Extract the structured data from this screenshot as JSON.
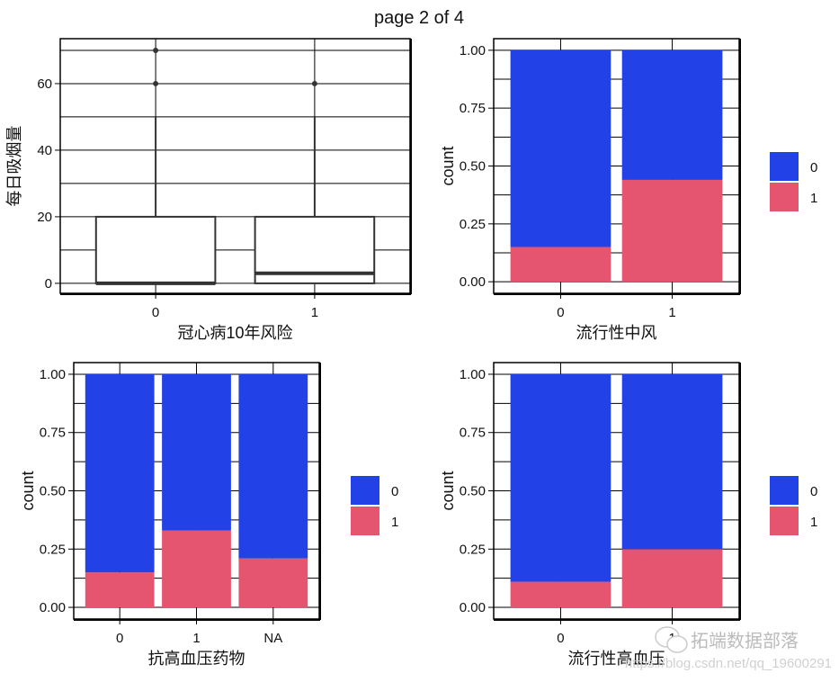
{
  "page_title": "page 2 of 4",
  "colors": {
    "0": "#2241e6",
    "1": "#e5556f",
    "box": "#333333"
  },
  "watermark": {
    "text": "拓端数据部落",
    "url": "https://blog.csdn.net/qq_19600291",
    "icon": "wechat-icon"
  },
  "chart_data": [
    {
      "type": "boxplot",
      "xlabel": "冠心病10年风险",
      "ylabel": "每日吸烟量",
      "categories": [
        "0",
        "1"
      ],
      "yticks": [
        0,
        20,
        40,
        60
      ],
      "ylim": [
        -3,
        73.5
      ],
      "grid": true,
      "boxes": [
        {
          "category": "0",
          "lower_whisker": 0,
          "q1": 0,
          "median": 0,
          "q3": 20,
          "upper_whisker": 50,
          "outliers": [
            60,
            70
          ]
        },
        {
          "category": "1",
          "lower_whisker": 0,
          "q1": 0,
          "median": 3,
          "q3": 20,
          "upper_whisker": 50,
          "outliers": [
            60
          ]
        }
      ]
    },
    {
      "type": "bar",
      "stacked": "fill",
      "xlabel": "流行性中风",
      "ylabel": "count",
      "categories": [
        "0",
        "1"
      ],
      "yticks": [
        "0.00",
        "0.25",
        "0.50",
        "0.75",
        "1.00"
      ],
      "ylim": [
        -0.05,
        1.05
      ],
      "grid": true,
      "legend": {
        "position": "right",
        "entries": [
          "0",
          "1"
        ]
      },
      "series": [
        {
          "name": "0",
          "values": [
            0.85,
            0.56
          ]
        },
        {
          "name": "1",
          "values": [
            0.15,
            0.44
          ]
        }
      ]
    },
    {
      "type": "bar",
      "stacked": "fill",
      "xlabel": "抗高血压药物",
      "ylabel": "count",
      "categories": [
        "0",
        "1",
        "NA"
      ],
      "yticks": [
        "0.00",
        "0.25",
        "0.50",
        "0.75",
        "1.00"
      ],
      "ylim": [
        -0.05,
        1.05
      ],
      "grid": true,
      "legend": {
        "position": "right",
        "entries": [
          "0",
          "1"
        ]
      },
      "series": [
        {
          "name": "0",
          "values": [
            0.85,
            0.67,
            0.79
          ]
        },
        {
          "name": "1",
          "values": [
            0.15,
            0.33,
            0.21
          ]
        }
      ]
    },
    {
      "type": "bar",
      "stacked": "fill",
      "xlabel": "流行性高血压",
      "ylabel": "count",
      "categories": [
        "0",
        "1"
      ],
      "yticks": [
        "0.00",
        "0.25",
        "0.50",
        "0.75",
        "1.00"
      ],
      "ylim": [
        -0.05,
        1.05
      ],
      "grid": true,
      "legend": {
        "position": "right",
        "entries": [
          "0",
          "1"
        ]
      },
      "series": [
        {
          "name": "0",
          "values": [
            0.89,
            0.75
          ]
        },
        {
          "name": "1",
          "values": [
            0.11,
            0.25
          ]
        }
      ]
    }
  ]
}
